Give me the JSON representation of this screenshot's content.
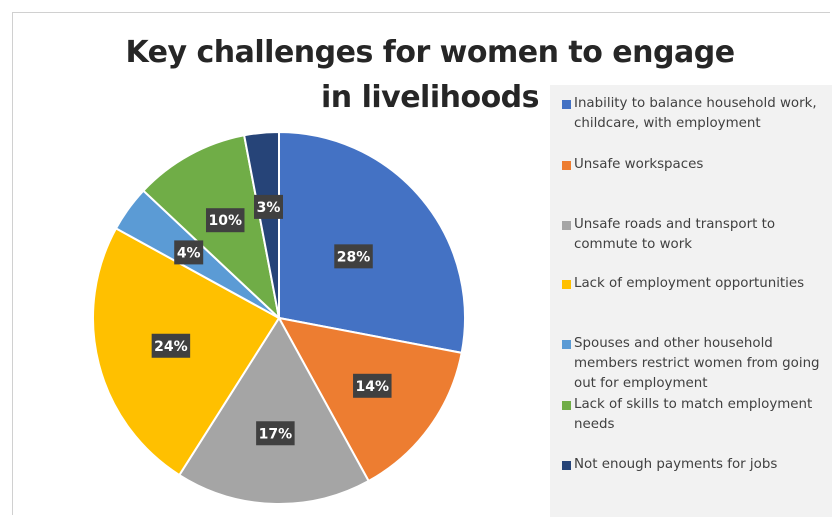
{
  "chart_data": {
    "type": "pie",
    "title": "Key challenges for women to engage in livelihoods",
    "legend_position": "right",
    "slices": [
      {
        "label": "Inability to balance household work, childcare, with employment",
        "value": 28,
        "display": "28%",
        "color": "#4472C4"
      },
      {
        "label": "Unsafe workspaces",
        "value": 14,
        "display": "14%",
        "color": "#ED7D31"
      },
      {
        "label": "Unsafe roads and transport to commute to work",
        "value": 17,
        "display": "17%",
        "color": "#A5A5A5"
      },
      {
        "label": "Lack of employment opportunities",
        "value": 24,
        "display": "24%",
        "color": "#FFC000"
      },
      {
        "label": "Spouses and other household members restrict women from going out for employment",
        "value": 4,
        "display": "4%",
        "color": "#5B9BD5"
      },
      {
        "label": "Lack of skills to match employment needs",
        "value": 10,
        "display": "10%",
        "color": "#70AD47"
      },
      {
        "label": "Not enough payments for jobs",
        "value": 3,
        "display": "3%",
        "color": "#264478"
      }
    ]
  }
}
